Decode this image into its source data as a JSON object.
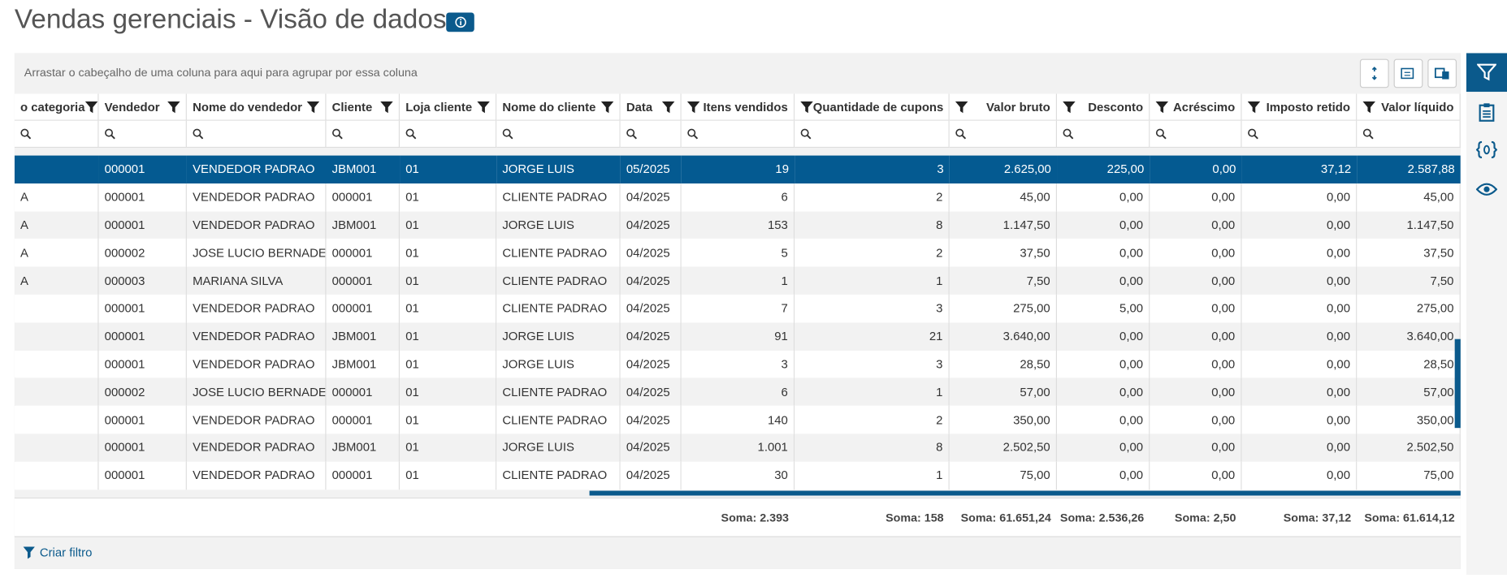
{
  "header": {
    "title": "Vendas gerenciais - Visão de dados"
  },
  "toolbar": {
    "group_hint": "Arrastar o cabeçalho de uma coluna para aqui para agrupar por essa coluna"
  },
  "table": {
    "columns": [
      "o categoria",
      "Vendedor",
      "Nome do vendedor",
      "Cliente",
      "Loja cliente",
      "Nome do cliente",
      "Data",
      "Itens vendidos",
      "Quantidade de cupons",
      "Valor bruto",
      "Desconto",
      "Acréscimo",
      "Imposto retido",
      "Valor líquido"
    ],
    "selected_row": 0,
    "rows": [
      [
        null,
        "000001",
        "VENDEDOR PADRAO",
        "JBM001",
        "01",
        "JORGE LUIS",
        "05/2025",
        "19",
        "3",
        "2.625,00",
        "225,00",
        "0,00",
        "37,12",
        "2.587,88"
      ],
      [
        "A",
        "000001",
        "VENDEDOR PADRAO",
        "000001",
        "01",
        "CLIENTE PADRAO",
        "04/2025",
        "6",
        "2",
        "45,00",
        "0,00",
        "0,00",
        "0,00",
        "45,00"
      ],
      [
        "A",
        "000001",
        "VENDEDOR PADRAO",
        "JBM001",
        "01",
        "JORGE LUIS",
        "04/2025",
        "153",
        "8",
        "1.147,50",
        "0,00",
        "0,00",
        "0,00",
        "1.147,50"
      ],
      [
        "A",
        "000002",
        "JOSE LUCIO BERNADEI",
        "000001",
        "01",
        "CLIENTE PADRAO",
        "04/2025",
        "5",
        "2",
        "37,50",
        "0,00",
        "0,00",
        "0,00",
        "37,50"
      ],
      [
        "A",
        "000003",
        "MARIANA SILVA",
        "000001",
        "01",
        "CLIENTE PADRAO",
        "04/2025",
        "1",
        "1",
        "7,50",
        "0,00",
        "0,00",
        "0,00",
        "7,50"
      ],
      [
        null,
        "000001",
        "VENDEDOR PADRAO",
        "000001",
        "01",
        "CLIENTE PADRAO",
        "04/2025",
        "7",
        "3",
        "275,00",
        "5,00",
        "0,00",
        "0,00",
        "275,00"
      ],
      [
        null,
        "000001",
        "VENDEDOR PADRAO",
        "JBM001",
        "01",
        "JORGE LUIS",
        "04/2025",
        "91",
        "21",
        "3.640,00",
        "0,00",
        "0,00",
        "0,00",
        "3.640,00"
      ],
      [
        null,
        "000001",
        "VENDEDOR PADRAO",
        "JBM001",
        "01",
        "JORGE LUIS",
        "04/2025",
        "3",
        "3",
        "28,50",
        "0,00",
        "0,00",
        "0,00",
        "28,50"
      ],
      [
        null,
        "000002",
        "JOSE LUCIO BERNADEI",
        "000001",
        "01",
        "CLIENTE PADRAO",
        "04/2025",
        "6",
        "1",
        "57,00",
        "0,00",
        "0,00",
        "0,00",
        "57,00"
      ],
      [
        null,
        "000001",
        "VENDEDOR PADRAO",
        "000001",
        "01",
        "CLIENTE PADRAO",
        "04/2025",
        "140",
        "2",
        "350,00",
        "0,00",
        "0,00",
        "0,00",
        "350,00"
      ],
      [
        null,
        "000001",
        "VENDEDOR PADRAO",
        "JBM001",
        "01",
        "JORGE LUIS",
        "04/2025",
        "1.001",
        "8",
        "2.502,50",
        "0,00",
        "0,00",
        "0,00",
        "2.502,50"
      ],
      [
        null,
        "000001",
        "VENDEDOR PADRAO",
        "000001",
        "01",
        "CLIENTE PADRAO",
        "04/2025",
        "30",
        "1",
        "75,00",
        "0,00",
        "0,00",
        "0,00",
        "75,00"
      ]
    ],
    "footer": [
      null,
      null,
      null,
      null,
      null,
      null,
      null,
      "Soma: 2.393",
      "Soma: 158",
      "Soma: 61.651,24",
      "Soma: 2.536,26",
      "Soma: 2,50",
      "Soma: 37,12",
      "Soma: 61.614,12"
    ]
  },
  "footer_action": "Criar filtro"
}
